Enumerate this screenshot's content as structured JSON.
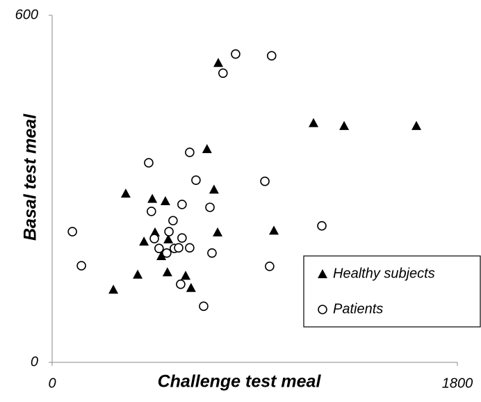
{
  "chart_data": {
    "type": "scatter",
    "x_label": "Challenge test meal",
    "y_label": "Basal test meal",
    "xlim": [
      0,
      1800
    ],
    "ylim": [
      0,
      600
    ],
    "xticks": [
      0,
      1800
    ],
    "yticks": [
      0,
      600
    ],
    "legend": "right",
    "series": [
      {
        "name": "Healthy subjects",
        "marker": "triangle",
        "color": "#000000",
        "x": [
          272,
          327,
          380,
          408,
          445,
          457,
          485,
          503,
          512,
          516,
          593,
          617,
          688,
          719,
          735,
          738,
          985,
          1161,
          1297,
          1618
        ],
        "values": [
          126,
          292,
          152,
          209,
          283,
          225,
          184,
          279,
          156,
          213,
          150,
          129,
          369,
          299,
          225,
          518,
          228,
          414,
          409,
          409
        ]
      },
      {
        "name": "Patients",
        "marker": "circle",
        "color": "#000000",
        "x": [
          90,
          130,
          429,
          441,
          454,
          475,
          509,
          519,
          537,
          543,
          562,
          571,
          577,
          577,
          611,
          611,
          639,
          673,
          701,
          710,
          759,
          815,
          945,
          966,
          975,
          1198
        ],
        "values": [
          226,
          167,
          345,
          261,
          214,
          197,
          189,
          226,
          245,
          197,
          198,
          135,
          215,
          273,
          363,
          198,
          315,
          97,
          268,
          189,
          500,
          533,
          313,
          166,
          530,
          236
        ]
      }
    ]
  }
}
